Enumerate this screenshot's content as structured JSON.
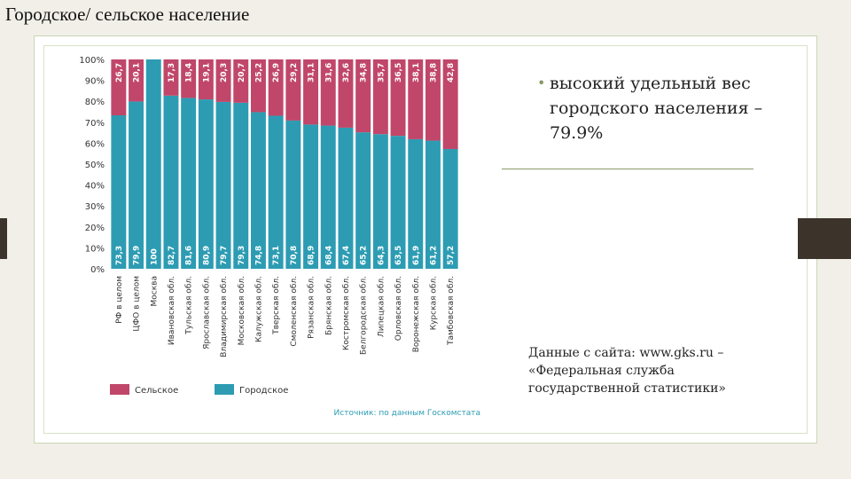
{
  "slide": {
    "title": "Городское/ сельское население",
    "bullet": "высокий удельный вес городского населения – 79.9%",
    "source_note": "Данные с сайта: www.gks.ru – «Федеральная служба государственной статистики»"
  },
  "colors": {
    "rural": "#c0476a",
    "urban": "#2d9cb3",
    "accent": "#8a9a6a"
  },
  "chart_data": {
    "type": "bar",
    "stacked": true,
    "categories": [
      "РФ в целом",
      "ЦФО в целом",
      "Москва",
      "Ивановская обл.",
      "Тульская обл.",
      "Ярославская обл.",
      "Владимирская обл.",
      "Московская обл.",
      "Калужская обл.",
      "Тверская обл.",
      "Смоленская обл.",
      "Рязанская обл.",
      "Брянская обл.",
      "Костромская обл.",
      "Белгородская обл.",
      "Липецкая обл.",
      "Орловская обл.",
      "Воронежская обл.",
      "Курская обл.",
      "Тамбовская обл."
    ],
    "series": [
      {
        "name": "Городское",
        "values": [
          73.3,
          79.9,
          100,
          82.7,
          81.6,
          80.9,
          79.7,
          79.3,
          74.8,
          73.1,
          70.8,
          68.9,
          68.4,
          67.4,
          65.2,
          64.3,
          63.5,
          61.9,
          61.2,
          57.2
        ]
      },
      {
        "name": "Сельское",
        "values": [
          26.7,
          20.1,
          0,
          17.3,
          18.4,
          19.1,
          20.3,
          20.7,
          25.2,
          26.9,
          29.2,
          31.1,
          31.6,
          32.6,
          34.8,
          35.7,
          36.5,
          38.1,
          38.8,
          42.8
        ]
      }
    ],
    "urban_labels": [
      "73,3",
      "79,9",
      "100",
      "82,7",
      "81,6",
      "80,9",
      "79,7",
      "79,3",
      "74,8",
      "73,1",
      "70,8",
      "68,9",
      "68,4",
      "67,4",
      "65,2",
      "64,3",
      "63,5",
      "61,9",
      "61,2",
      "57,2"
    ],
    "rural_labels": [
      "26,7",
      "20,1",
      "",
      "17,3",
      "18,4",
      "19,1",
      "20,3",
      "20,7",
      "25,2",
      "26,9",
      "29,2",
      "31,1",
      "31,6",
      "32,6",
      "34,8",
      "35,7",
      "36,5",
      "38,1",
      "38,8",
      "42,8"
    ],
    "y_ticks": [
      "0%",
      "10%",
      "20%",
      "30%",
      "40%",
      "50%",
      "60%",
      "70%",
      "80%",
      "90%",
      "100%"
    ],
    "ylim": [
      0,
      100
    ],
    "legend": [
      "Сельское",
      "Городское"
    ],
    "source": "Источник: по данным Госкомстата",
    "grid": false
  }
}
